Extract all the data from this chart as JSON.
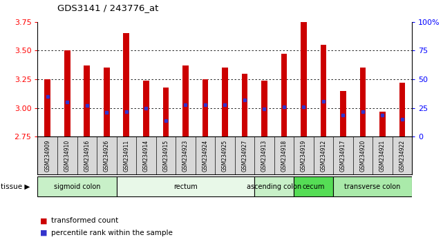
{
  "title": "GDS3141 / 243776_at",
  "samples": [
    "GSM234909",
    "GSM234910",
    "GSM234916",
    "GSM234926",
    "GSM234911",
    "GSM234914",
    "GSM234915",
    "GSM234923",
    "GSM234924",
    "GSM234925",
    "GSM234927",
    "GSM234913",
    "GSM234918",
    "GSM234919",
    "GSM234912",
    "GSM234917",
    "GSM234920",
    "GSM234921",
    "GSM234922"
  ],
  "transformed_counts": [
    3.25,
    3.5,
    3.37,
    3.35,
    3.65,
    3.24,
    3.18,
    3.37,
    3.25,
    3.35,
    3.3,
    3.24,
    3.47,
    3.75,
    3.55,
    3.15,
    3.35,
    2.97,
    3.22
  ],
  "percentile_ranks": [
    35,
    30,
    27,
    21,
    22,
    25,
    14,
    28,
    28,
    28,
    32,
    24,
    26,
    26,
    31,
    19,
    22,
    19,
    15
  ],
  "y_min": 2.75,
  "y_max": 3.75,
  "y_ticks": [
    2.75,
    3.0,
    3.25,
    3.5,
    3.75
  ],
  "y2_ticks": [
    0,
    25,
    50,
    75,
    100
  ],
  "bar_color": "#cc0000",
  "dot_color": "#3333cc",
  "tissue_groups": [
    {
      "label": "sigmoid colon",
      "start": 0,
      "end": 4,
      "color": "#c8f0c8"
    },
    {
      "label": "rectum",
      "start": 4,
      "end": 11,
      "color": "#e8f8e8"
    },
    {
      "label": "ascending colon",
      "start": 11,
      "end": 13,
      "color": "#c8f0c8"
    },
    {
      "label": "cecum",
      "start": 13,
      "end": 15,
      "color": "#55dd55"
    },
    {
      "label": "transverse colon",
      "start": 15,
      "end": 19,
      "color": "#aaeaaa"
    }
  ],
  "legend_labels": [
    "transformed count",
    "percentile rank within the sample"
  ],
  "legend_colors": [
    "#cc0000",
    "#3333cc"
  ]
}
